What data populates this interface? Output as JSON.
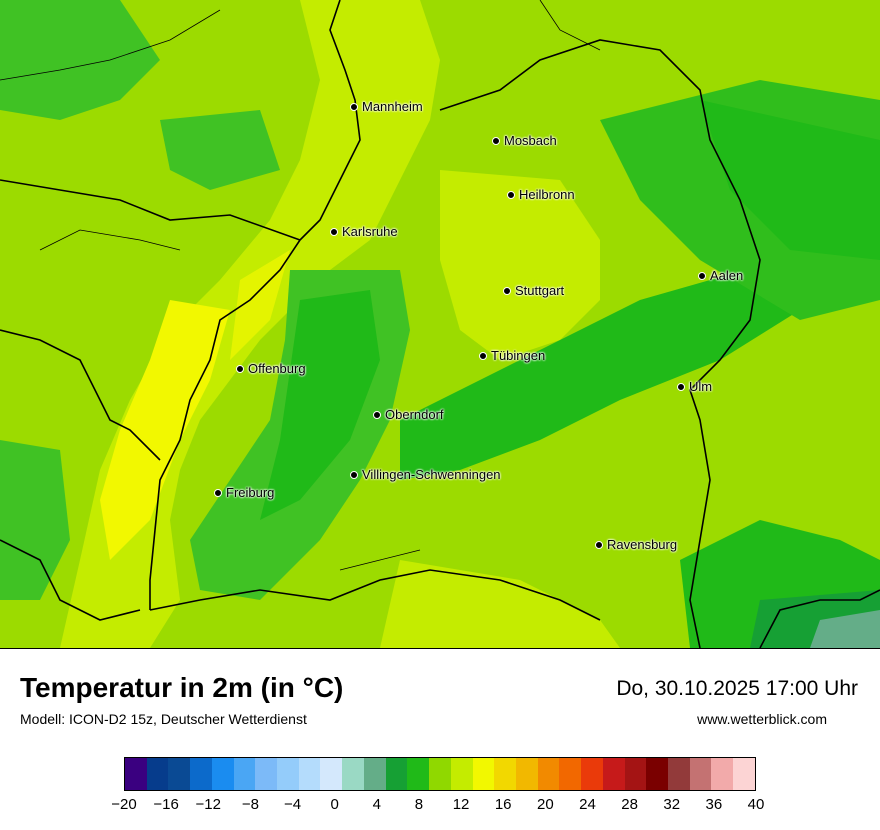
{
  "cities": [
    {
      "name": "Mannheim"
    },
    {
      "name": "Mosbach"
    },
    {
      "name": "Heilbronn"
    },
    {
      "name": "Karlsruhe"
    },
    {
      "name": "Aalen"
    },
    {
      "name": "Stuttgart"
    },
    {
      "name": "Tübingen"
    },
    {
      "name": "Offenburg"
    },
    {
      "name": "Ulm"
    },
    {
      "name": "Oberndorf"
    },
    {
      "name": "Villingen-Schwenningen"
    },
    {
      "name": "Freiburg"
    },
    {
      "name": "Ravensburg"
    }
  ],
  "footer": {
    "title": "Temperatur in 2m (in °C)",
    "model": "Modell: ICON-D2 15z, Deutscher Wetterdienst",
    "date": "Do, 30.10.2025 17:00 Uhr",
    "site": "www.wetterblick.com"
  },
  "scale": {
    "colors": [
      "#3a0080",
      "#063c8c",
      "#0a4a94",
      "#0c6acb",
      "#1a8cf0",
      "#4aa6f4",
      "#7cbaf8",
      "#94ccfa",
      "#b4dcfc",
      "#d4e8fc",
      "#9ad9c4",
      "#64ad88",
      "#16a034",
      "#20ba18",
      "#90d800",
      "#c4ec00",
      "#f2f800",
      "#f2d800",
      "#f2b800",
      "#f28a00",
      "#f26800",
      "#ea3a0a",
      "#c61a1a",
      "#a41414",
      "#7a0000",
      "#923a3a",
      "#c47272",
      "#f2aaaa",
      "#fcd4d4"
    ],
    "ticks": [
      "−20",
      "−16",
      "−12",
      "−8",
      "−4",
      "0",
      "4",
      "8",
      "12",
      "16",
      "20",
      "24",
      "28",
      "32",
      "36",
      "40"
    ]
  }
}
